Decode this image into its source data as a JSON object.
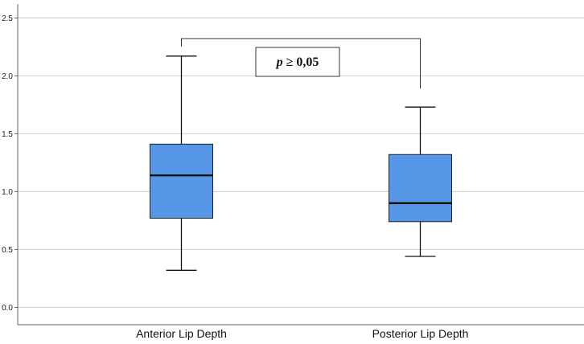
{
  "chart_data": {
    "type": "boxplot",
    "categories": [
      "Anterior Lip Depth",
      "Posterior Lip Depth"
    ],
    "boxes": [
      {
        "category": "Anterior Lip Depth",
        "min": 0.32,
        "q1": 0.77,
        "median": 1.14,
        "q3": 1.41,
        "max": 2.17
      },
      {
        "category": "Posterior Lip Depth",
        "min": 0.44,
        "q1": 0.74,
        "median": 0.9,
        "q3": 1.32,
        "max": 1.73
      }
    ],
    "y_ticks": [
      "0.0",
      "0.5",
      "1.0",
      "1.5",
      "2.0",
      "2.5"
    ],
    "ylim": [
      -0.15,
      2.62
    ],
    "grid": true,
    "box_color": "#5596e6",
    "annotation": {
      "text": "p ≥ 0,05",
      "italic_part": "p",
      "rest_part": " ≥ 0,05",
      "bracket_between": [
        "Anterior Lip Depth",
        "Posterior Lip Depth"
      ]
    }
  }
}
